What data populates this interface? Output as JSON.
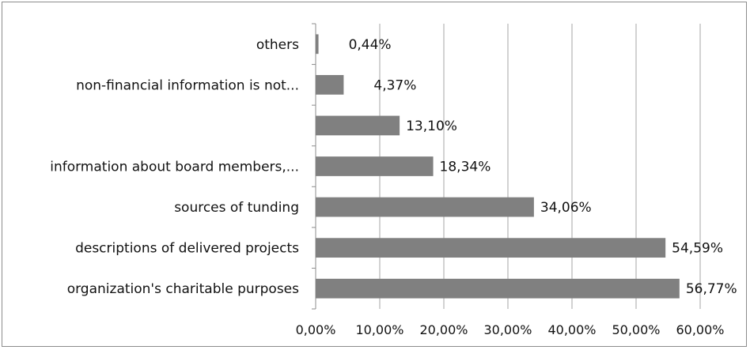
{
  "chart_data": {
    "type": "bar",
    "orientation": "horizontal",
    "categories": [
      "others",
      "non-financial information is not...",
      "",
      "information about board members,...",
      "sources of tunding",
      "descriptions of delivered projects",
      "organization's charitable purposes"
    ],
    "values": [
      0.44,
      4.37,
      13.1,
      18.34,
      34.06,
      54.59,
      56.77
    ],
    "value_labels": [
      "0,44%",
      "4,37%",
      "13,10%",
      "18,34%",
      "34,06%",
      "54,59%",
      "56,77%"
    ],
    "xlim": [
      0,
      60
    ],
    "x_ticks": [
      0,
      10,
      20,
      30,
      40,
      50,
      60
    ],
    "x_tick_labels": [
      "0,00%",
      "10,00%",
      "20,00%",
      "30,00%",
      "40,00%",
      "50,00%",
      "60,00%"
    ],
    "grid": true,
    "legend": "none",
    "bar_color": "#808080",
    "grid_color": "#a6a6a6"
  }
}
